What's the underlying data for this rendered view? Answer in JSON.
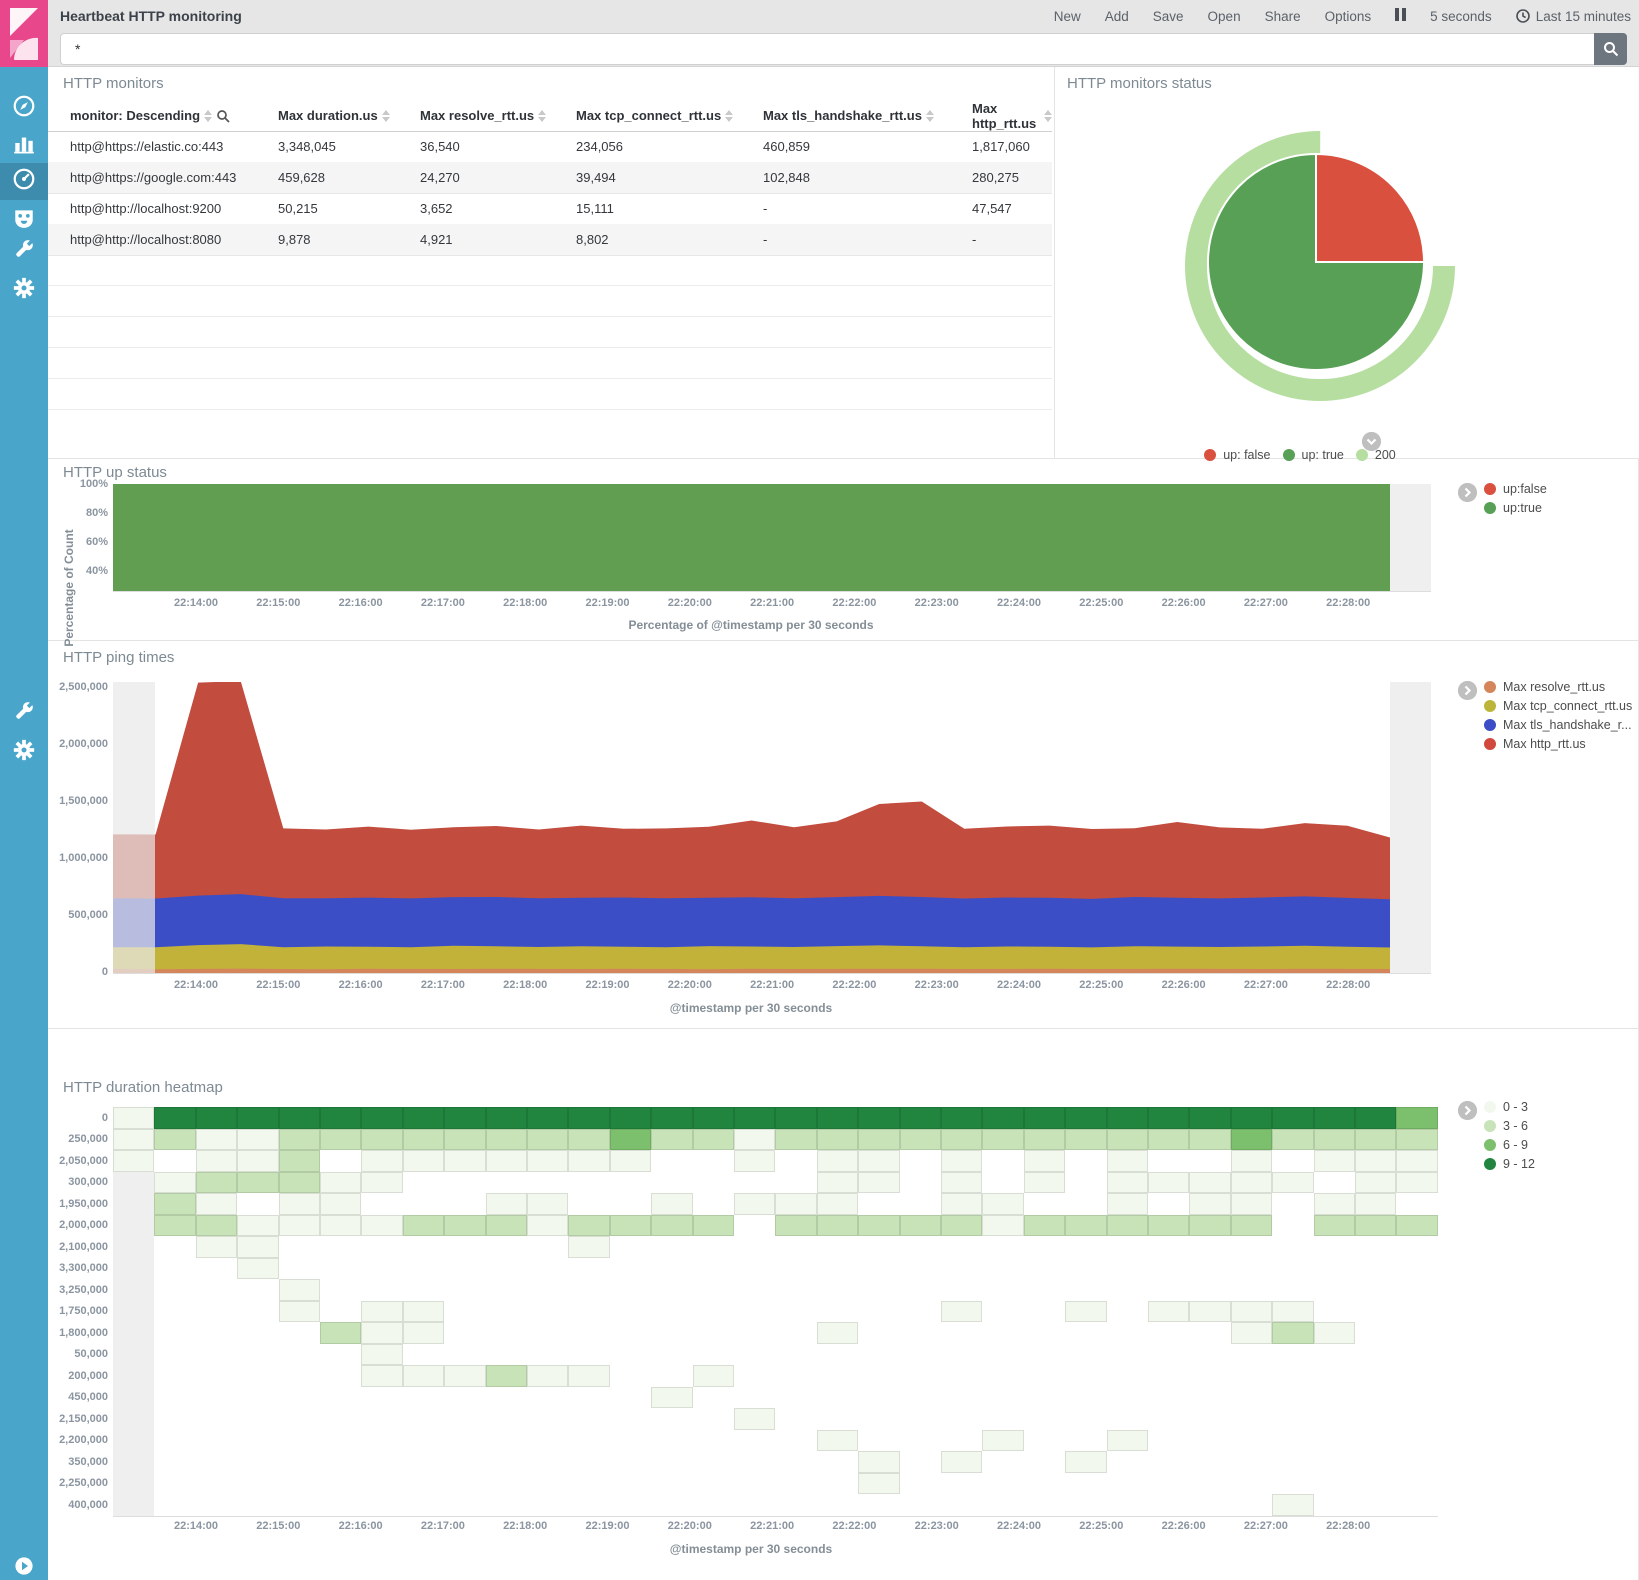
{
  "topnav": {
    "title": "Heartbeat HTTP monitoring",
    "menu": [
      "New",
      "Add",
      "Save",
      "Open",
      "Share",
      "Options"
    ],
    "refresh_interval": "5 seconds",
    "time_range": "Last 15 minutes"
  },
  "search": {
    "value": "*"
  },
  "brand": {
    "logo_color": "#e8478b",
    "sidebar_color": "#49a5c9",
    "sidebar_active_color": "#3e8cad"
  },
  "sidebar": {
    "items": [
      {
        "name": "discover",
        "icon": "compass-icon",
        "active": false
      },
      {
        "name": "visualize",
        "icon": "bar-chart-icon",
        "active": false
      },
      {
        "name": "dashboard",
        "icon": "gauge-icon",
        "active": true
      },
      {
        "name": "timelion",
        "icon": "face-icon",
        "active": false
      },
      {
        "name": "dev-tools",
        "icon": "wrench-icon",
        "active": false
      },
      {
        "name": "management",
        "icon": "gear-icon",
        "active": false
      }
    ],
    "extra_items": [
      {
        "name": "dev-tools-2",
        "icon": "wrench-icon"
      },
      {
        "name": "management-2",
        "icon": "gear-icon"
      }
    ],
    "collapse_icon": "collapse-arrow-icon"
  },
  "panels": {
    "monitors": {
      "title": "HTTP monitors",
      "table": {
        "columns": [
          "monitor: Descending",
          "Max duration.us",
          "Max resolve_rtt.us",
          "Max tcp_connect_rtt.us",
          "Max tls_handshake_rtt.us",
          "Max http_rtt.us"
        ],
        "rows": [
          [
            "http@https://elastic.co:443",
            "3,348,045",
            "36,540",
            "234,056",
            "460,859",
            "1,817,060"
          ],
          [
            "http@https://google.com:443",
            "459,628",
            "24,270",
            "39,494",
            "102,848",
            "280,275"
          ],
          [
            "http@http://localhost:9200",
            "50,215",
            "3,652",
            "15,111",
            "-",
            "47,547"
          ],
          [
            "http@http://localhost:8080",
            "9,878",
            "4,921",
            "8,802",
            "-",
            "-"
          ]
        ],
        "empty_rows": 5
      }
    },
    "status": {
      "title": "HTTP monitors status",
      "legend": [
        {
          "label": "up: false",
          "color": "#d9503f"
        },
        {
          "label": "up: true",
          "color": "#57a055"
        },
        {
          "label": "200",
          "color": "#b7dea1"
        }
      ]
    },
    "up_status": {
      "title": "HTTP up status",
      "ylabel": "Percentage of Count",
      "yticks": [
        "100%",
        "80%",
        "60%",
        "40%"
      ],
      "xlabel": "Percentage of @timestamp per 30 seconds",
      "legend": [
        {
          "label": "up:false",
          "color": "#d9503f"
        },
        {
          "label": "up:true",
          "color": "#57a055"
        }
      ]
    },
    "ping": {
      "title": "HTTP ping times",
      "yticks": [
        "2,500,000",
        "2,000,000",
        "1,500,000",
        "1,000,000",
        "500,000",
        "0"
      ],
      "xlabel": "@timestamp per 30 seconds",
      "legend": [
        {
          "label": "Max resolve_rtt.us",
          "color": "#d4865a"
        },
        {
          "label": "Max tcp_connect_rtt.us",
          "color": "#bcb53a"
        },
        {
          "label": "Max tls_handshake_r...",
          "color": "#3c4ec5"
        },
        {
          "label": "Max http_rtt.us",
          "color": "#d0493c"
        }
      ]
    },
    "heatmap": {
      "title": "HTTP duration heatmap",
      "xlabel": "@timestamp per 30 seconds",
      "legend": [
        {
          "label": "0 - 3",
          "color": "#f2f8ed"
        },
        {
          "label": "3 - 6",
          "color": "#c7e3b7"
        },
        {
          "label": "6 - 9",
          "color": "#7cbf6c"
        },
        {
          "label": "9 - 12",
          "color": "#21853f"
        }
      ]
    }
  },
  "xaxis_times": [
    "22:14:00",
    "22:15:00",
    "22:16:00",
    "22:17:00",
    "22:18:00",
    "22:19:00",
    "22:20:00",
    "22:21:00",
    "22:22:00",
    "22:23:00",
    "22:24:00",
    "22:25:00",
    "22:26:00",
    "22:27:00",
    "22:28:00"
  ],
  "chart_data": [
    {
      "type": "pie",
      "title": "HTTP monitors status",
      "unit": "percent",
      "slices": [
        {
          "label": "up: false",
          "value": 25,
          "color": "#d9503f"
        },
        {
          "label": "up: true",
          "value": 75,
          "color": "#57a055"
        }
      ],
      "outer_ring": {
        "label": "200",
        "value": 75,
        "color": "#b7dea1"
      }
    },
    {
      "type": "area",
      "title": "HTTP up status",
      "ylabel": "Percentage of Count",
      "ylim": [
        30,
        100
      ],
      "x_start": "22:13:30",
      "x_step_seconds": 30,
      "series": [
        {
          "name": "up:true",
          "color": "#629e51",
          "values": [
            100,
            100,
            100,
            100,
            100,
            100,
            100,
            100,
            100,
            100,
            100,
            100,
            100,
            100,
            100,
            100,
            100,
            100,
            100,
            100,
            100,
            100,
            100,
            100,
            100,
            100,
            100,
            100,
            100,
            100,
            100
          ]
        }
      ]
    },
    {
      "type": "area",
      "stacked": true,
      "title": "HTTP ping times",
      "ylabel": "",
      "ylim": [
        0,
        2500000
      ],
      "x_start": "22:13:30",
      "x_step_seconds": 30,
      "series": [
        {
          "name": "Max resolve_rtt.us",
          "color": "#d4865a",
          "values": [
            36000,
            32000,
            35000,
            38000,
            34000,
            33000,
            36000,
            35000,
            34000,
            37000,
            35000,
            34000,
            36000,
            35000,
            33000,
            36000,
            34000,
            35000,
            37000,
            36000,
            34000,
            35000,
            36000,
            34000,
            35000,
            36000,
            35000,
            34000,
            36000,
            35000,
            34000
          ]
        },
        {
          "name": "Max tcp_connect_rtt.us",
          "color": "#c2b23a",
          "values": [
            185000,
            190000,
            205000,
            210000,
            188000,
            195000,
            190000,
            186000,
            200000,
            192000,
            188000,
            195000,
            190000,
            187000,
            198000,
            192000,
            189000,
            196000,
            200000,
            194000,
            188000,
            193000,
            190000,
            186000,
            195000,
            191000,
            188000,
            194000,
            198000,
            190000,
            185000
          ]
        },
        {
          "name": "Max tls_handshake_rtt.us",
          "color": "#3c4ec5",
          "values": [
            420000,
            418000,
            425000,
            430000,
            420000,
            415000,
            422000,
            420000,
            418000,
            424000,
            420000,
            417000,
            423000,
            420000,
            416000,
            422000,
            419000,
            421000,
            425000,
            423000,
            418000,
            421000,
            420000,
            417000,
            423000,
            420000,
            418000,
            421000,
            424000,
            420000,
            415000
          ]
        },
        {
          "name": "Max http_rtt.us",
          "color": "#c24c3e",
          "values": [
            550000,
            550000,
            1830000,
            1830000,
            600000,
            590000,
            610000,
            590000,
            600000,
            610000,
            590000,
            620000,
            590000,
            600000,
            610000,
            660000,
            610000,
            650000,
            790000,
            820000,
            600000,
            610000,
            620000,
            600000,
            590000,
            650000,
            610000,
            590000,
            630000,
            620000,
            530000
          ]
        }
      ]
    },
    {
      "type": "heatmap",
      "title": "HTTP duration heatmap",
      "row_labels": [
        "0",
        "250,000",
        "2,050,000",
        "300,000",
        "1,950,000",
        "2,000,000",
        "2,100,000",
        "3,300,000",
        "3,250,000",
        "1,750,000",
        "1,800,000",
        "50,000",
        "200,000",
        "450,000",
        "2,150,000",
        "2,200,000",
        "350,000",
        "2,250,000",
        "400,000"
      ],
      "levels": [
        {
          "label": "0 - 3",
          "color": "#f2f8ed"
        },
        {
          "label": "3 - 6",
          "color": "#c7e3b7"
        },
        {
          "label": "6 - 9",
          "color": "#7cbf6c"
        },
        {
          "label": "9 - 12",
          "color": "#21853f"
        }
      ],
      "row_cells": [
        "14444444444444444444444444444443",
        "12112222222232212222222222232222",
        "10112011111110010110101010010111",
        "01222110000000000110101011111011",
        "02101100011001011100110010110110",
        "02211112221222202222212222220222",
        "00110000000100000000000000000000",
        "00010000000000000000000000000000",
        "00001000000000000000000000000000",
        "00001011000000000000100101111000",
        "00000211000000000100000000012100",
        "00000010000000000000000000000000",
        "00000011121100100000000000000000",
        "00000000000001000000000000000000",
        "00000000000000010000000000000000",
        "00000000000000000100010010000000",
        "00000000000000000010100100000000",
        "00000000000000000010000000000000",
        "00000000000000000000000000001000"
      ]
    }
  ]
}
